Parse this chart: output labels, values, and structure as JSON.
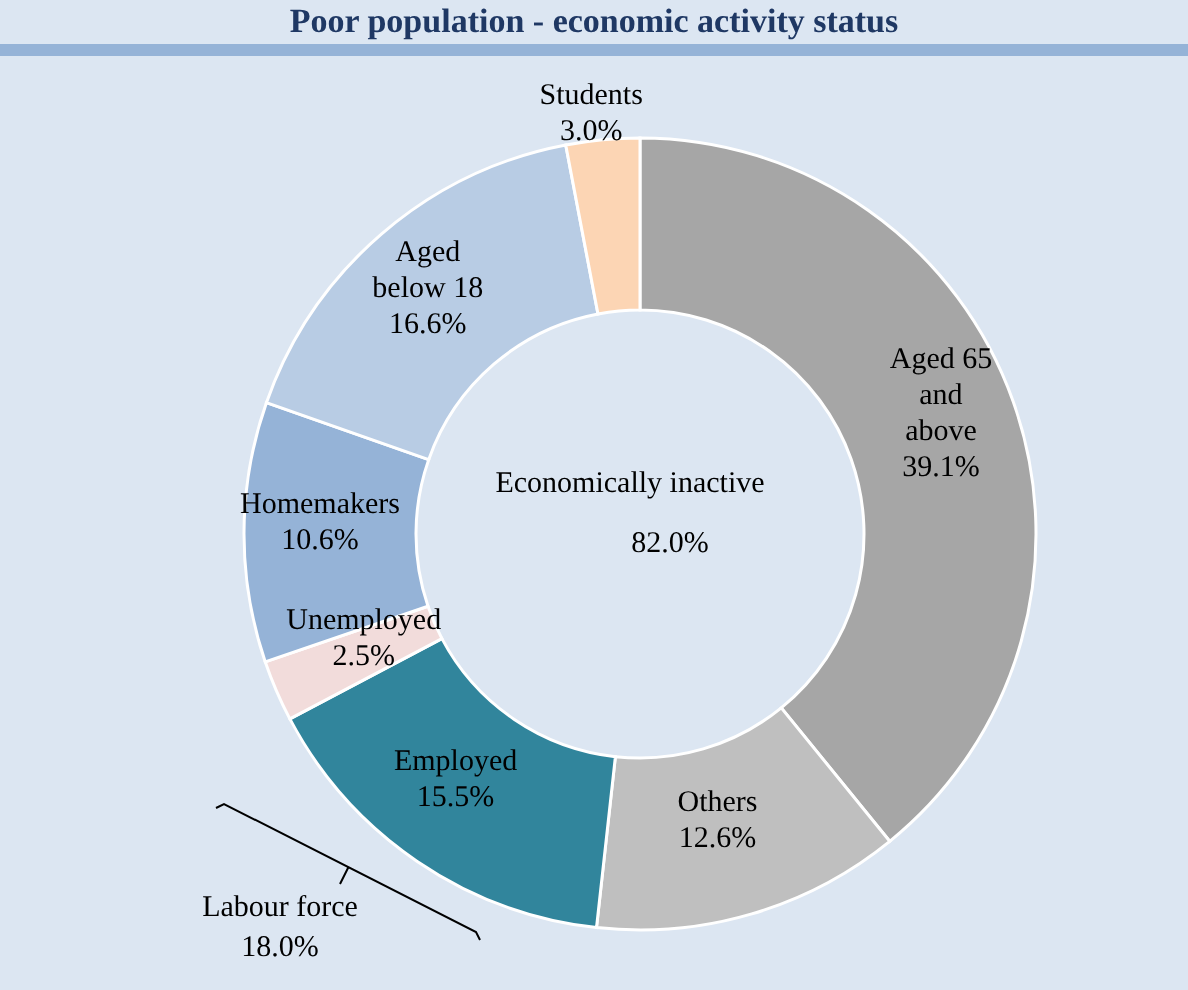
{
  "chart_data": {
    "type": "donut",
    "title": "Poor population - economic activity status",
    "categories": [
      "Aged 65 and above",
      "Others",
      "Employed",
      "Unemployed",
      "Homemakers",
      "Aged below 18",
      "Students"
    ],
    "values": [
      39.1,
      12.6,
      15.5,
      2.5,
      10.6,
      16.6,
      3.0
    ],
    "colors": [
      "#a6a6a6",
      "#bfbfbf",
      "#31859c",
      "#f2dcdb",
      "#95b3d7",
      "#b8cce4",
      "#fcd5b4"
    ],
    "value_labels": [
      "39.1%",
      "12.6%",
      "15.5%",
      "2.5%",
      "10.6%",
      "16.6%",
      "3.0%"
    ],
    "annotations": [
      "Economically inactive",
      "82.0%",
      "Labour force",
      "18.0%"
    ]
  }
}
